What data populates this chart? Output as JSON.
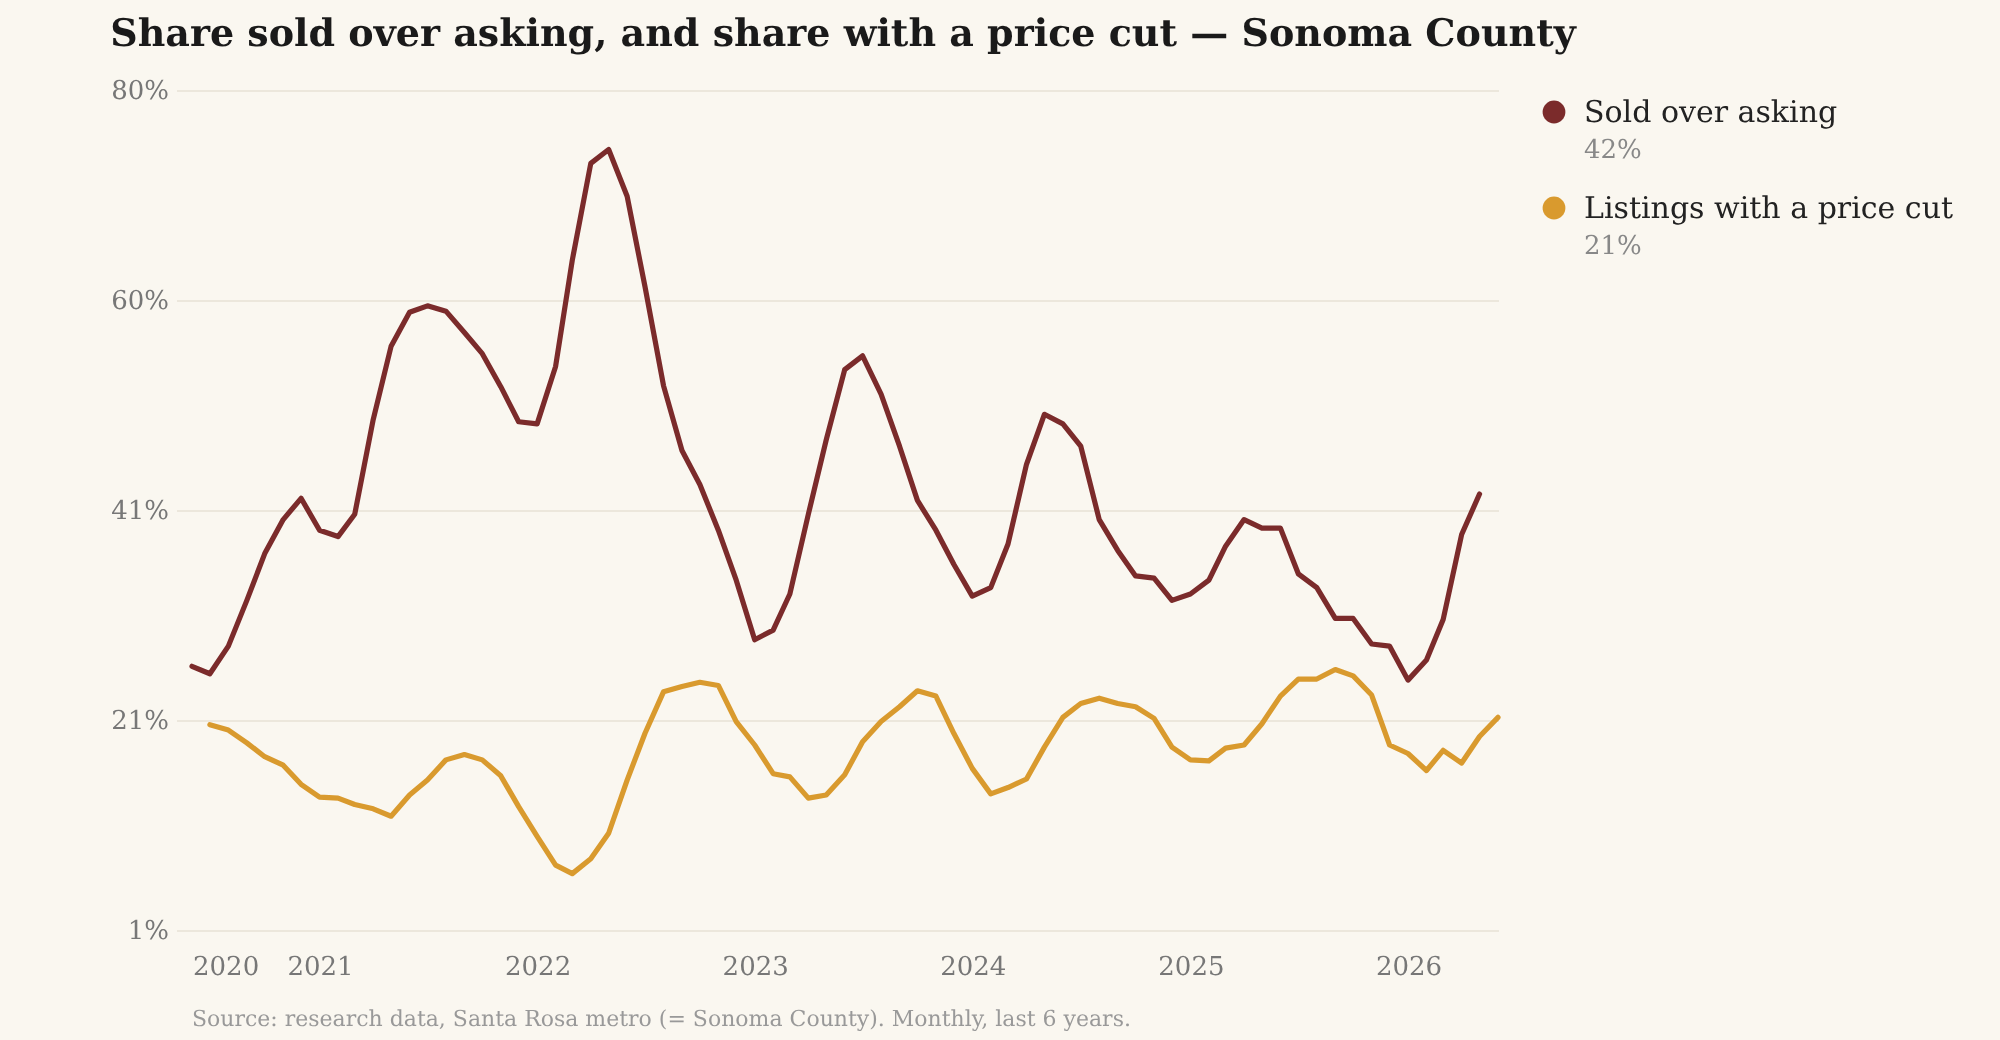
{
  "chart_data": {
    "type": "line",
    "title": "Share sold over asking, and share with a price cut — Sonoma County",
    "x": [
      "2020-06",
      "2020-07",
      "2020-08",
      "2020-09",
      "2020-10",
      "2020-11",
      "2020-12",
      "2021-01",
      "2021-02",
      "2021-03",
      "2021-04",
      "2021-05",
      "2021-06",
      "2021-07",
      "2021-08",
      "2021-09",
      "2021-10",
      "2021-11",
      "2021-12",
      "2022-01",
      "2022-02",
      "2022-03",
      "2022-04",
      "2022-05",
      "2022-06",
      "2022-07",
      "2022-08",
      "2022-09",
      "2022-10",
      "2022-11",
      "2022-12",
      "2023-01",
      "2023-02",
      "2023-03",
      "2023-04",
      "2023-05",
      "2023-06",
      "2023-07",
      "2023-08",
      "2023-09",
      "2023-10",
      "2023-11",
      "2023-12",
      "2024-01",
      "2024-02",
      "2024-03",
      "2024-04",
      "2024-05",
      "2024-06",
      "2024-07",
      "2024-08",
      "2024-09",
      "2024-10",
      "2024-11",
      "2024-12",
      "2025-01",
      "2025-02",
      "2025-03",
      "2025-04",
      "2025-05",
      "2025-06",
      "2025-07",
      "2025-08",
      "2025-09",
      "2025-10",
      "2025-11",
      "2025-12",
      "2026-01",
      "2026-02",
      "2026-03",
      "2026-04",
      "2026-05",
      "2026-06"
    ],
    "series": [
      {
        "name": "Sold over asking",
        "color": "#7b2b2b",
        "values": [
          25.8,
          25.1,
          27.7,
          32.0,
          36.4,
          39.6,
          41.6,
          38.6,
          38.0,
          40.1,
          49.0,
          55.9,
          59.1,
          59.7,
          59.2,
          57.2,
          55.2,
          52.1,
          48.8,
          48.6,
          54.0,
          64.0,
          73.1,
          74.4,
          70.0,
          61.5,
          52.2,
          46.1,
          42.9,
          38.6,
          33.9,
          28.3,
          29.2,
          32.6,
          40.1,
          47.1,
          53.7,
          55.0,
          51.4,
          46.5,
          41.4,
          38.6,
          35.4,
          32.4,
          33.2,
          37.3,
          44.8,
          49.5,
          48.6,
          46.5,
          39.6,
          36.7,
          34.3,
          34.1,
          32.0,
          32.6,
          33.9,
          37.1,
          39.6,
          38.8,
          38.8,
          34.5,
          33.2,
          30.3,
          30.3,
          27.9,
          27.7,
          24.5,
          26.4,
          30.2,
          38.2,
          42,
          null
        ]
      },
      {
        "name": "Listings with a price cut",
        "color": "#d99a2e",
        "values": [
          null,
          20.3,
          19.8,
          18.6,
          17.3,
          16.5,
          14.7,
          13.5,
          13.4,
          12.8,
          12.4,
          11.7,
          13.7,
          15.1,
          17.0,
          17.5,
          17.0,
          15.5,
          12.6,
          9.8,
          7.1,
          6.3,
          7.7,
          10.1,
          15.1,
          19.5,
          23.4,
          23.9,
          24.3,
          24.0,
          20.6,
          18.4,
          15.7,
          15.4,
          13.4,
          13.7,
          15.6,
          18.7,
          20.6,
          22.0,
          23.5,
          23.0,
          19.5,
          16.2,
          13.8,
          14.4,
          15.2,
          18.2,
          21.0,
          22.3,
          22.8,
          22.3,
          22.0,
          20.9,
          18.2,
          17.0,
          16.9,
          18.1,
          18.4,
          20.4,
          23.0,
          24.6,
          24.6,
          25.5,
          24.9,
          23.1,
          18.4,
          17.6,
          16.0,
          17.9,
          16.7,
          19.2,
          21
        ]
      }
    ],
    "xlim": [
      "2020-06",
      "2026-06"
    ],
    "xticks": [
      {
        "value": "2020-06",
        "label": "2020"
      },
      "2021",
      "2022",
      "2023",
      "2024",
      "2025",
      "2026"
    ],
    "ylim": [
      1,
      80
    ],
    "yticks": [
      {
        "value": 1,
        "label": "1%"
      },
      {
        "value": 20.75,
        "label": "21%"
      },
      {
        "value": 40.5,
        "label": "41%"
      },
      {
        "value": 60.25,
        "label": "60%"
      },
      {
        "value": 80,
        "label": "80%"
      }
    ],
    "grid": "y",
    "legend": "top right",
    "annotations": [
      "42%",
      "21%",
      "Source: research data, Santa Rosa metro (= Sonoma County). Monthly, last 6 years."
    ]
  }
}
